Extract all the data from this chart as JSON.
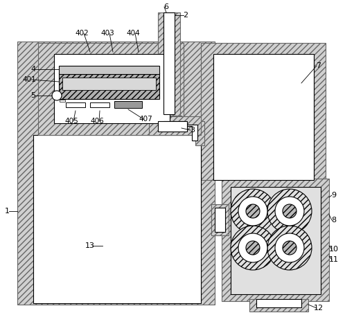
{
  "bg_color": "#ffffff",
  "hatch_fc": "#d0d0d0",
  "hatch_ec": "#666666",
  "hatch_pat": "////",
  "white": "#ffffff",
  "gray_light": "#e0e0e0",
  "gray_med": "#b8b8b8",
  "gray_dark": "#909090"
}
